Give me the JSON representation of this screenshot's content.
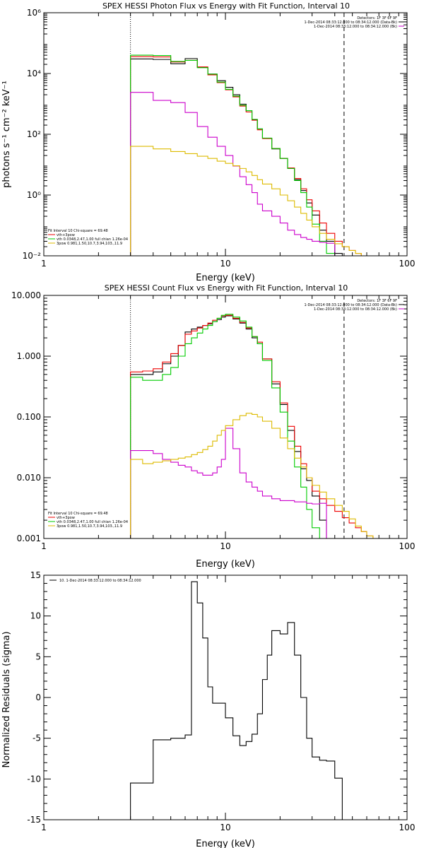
{
  "chart_data": [
    {
      "type": "line",
      "title": "SPEX HESSI Photon Flux vs Energy with Fit Function, Interval 10",
      "xlabel": "Energy (keV)",
      "ylabel": "photons s⁻¹ cm⁻² keV⁻¹",
      "xscale": "log",
      "yscale": "log",
      "xlim": [
        1,
        100
      ],
      "ylim": [
        0.01,
        1000000
      ],
      "x_ticks": [
        {
          "value": 1,
          "label": "1"
        },
        {
          "value": 10,
          "label": "10"
        },
        {
          "value": 100,
          "label": "100"
        }
      ],
      "y_ticks": [
        {
          "value": 0.01,
          "label": "10⁻²"
        },
        {
          "value": 1,
          "label": "10⁰"
        },
        {
          "value": 100,
          "label": "10²"
        },
        {
          "value": 10000,
          "label": "10⁴"
        },
        {
          "value": 1000000,
          "label": "10⁶"
        }
      ],
      "vlines": [
        {
          "x": 3.0,
          "style": "dotted"
        },
        {
          "x": 45.0,
          "style": "dashed"
        }
      ],
      "info_legend": {
        "placement": "top-right",
        "lines": [
          {
            "text": "Detectors: 1F 3F 6F 9F",
            "color": "#000000"
          },
          {
            "text": "1-Dec-2014 08:33:12.000 to 08:34:12.000 (Data-Bk)",
            "color": "#000000"
          },
          {
            "text": "1-Dec-2014 08:33:12.000 to 08:34:12.000 (Bk)",
            "color": "#cc00cc"
          }
        ]
      },
      "fit_legend": {
        "placement": "bottom-left",
        "lines": [
          {
            "text": "Fit Interval 10   Chi-square = 69.48",
            "color": "#000000"
          },
          {
            "text": "vth+3pow",
            "color": "#ee0000"
          },
          {
            "text": "vth 0.0348,2.47,1.00  full chian 1.26e-04",
            "color": "#00cc00"
          },
          {
            "text": "3pow 0.981,1.50,10.7,3.94,103.,11.9",
            "color": "#ddbb00"
          }
        ]
      },
      "edges": [
        3.0,
        4.0,
        5.0,
        6.0,
        7.0,
        8.0,
        9.0,
        10.0,
        11.0,
        12.0,
        13.0,
        14.0,
        15.0,
        16.0,
        18.0,
        20.0,
        22.0,
        24.0,
        26.0,
        28.0,
        30.0,
        33.0,
        36.0,
        40.0,
        44.0,
        48.0,
        52.0,
        56.0,
        60.0
      ],
      "series": [
        {
          "color": "#000000",
          "values": [
            30000,
            29000,
            21000,
            31000,
            16000,
            9600,
            5800,
            3500,
            2000,
            980,
            600,
            300,
            150,
            74,
            33,
            16,
            7.5,
            3.2,
            1.4,
            0.55,
            0.22,
            0.07,
            0.03,
            0.012,
            null,
            null,
            null,
            null
          ]
        },
        {
          "color": "#ee0000",
          "values": [
            36000,
            35000,
            24000,
            27000,
            16500,
            9000,
            5000,
            2900,
            1700,
            850,
            540,
            290,
            140,
            72,
            34,
            16,
            7.8,
            3.5,
            1.6,
            0.7,
            0.3,
            0.12,
            0.055,
            0.03,
            0.02,
            0.015,
            0.012,
            0.01
          ]
        },
        {
          "color": "#00cc00",
          "values": [
            40000,
            39000,
            25000,
            27000,
            15500,
            9500,
            5200,
            3000,
            1800,
            900,
            600,
            310,
            150,
            75,
            34,
            16,
            7.5,
            3.0,
            1.2,
            0.4,
            0.11,
            0.03,
            0.012,
            null,
            null,
            null,
            null,
            null
          ]
        },
        {
          "color": "#cc00cc",
          "values": [
            2400,
            1300,
            1100,
            520,
            180,
            80,
            40,
            20,
            9.0,
            4.0,
            2.2,
            1.2,
            0.5,
            0.3,
            0.2,
            0.12,
            0.07,
            0.05,
            0.04,
            0.035,
            0.03,
            0.028,
            0.026,
            null,
            null,
            null,
            null,
            null
          ]
        },
        {
          "color": "#ddbb00",
          "values": [
            40,
            33,
            27,
            23,
            19,
            16,
            13,
            11,
            9.2,
            7.5,
            5.8,
            4.4,
            3.2,
            2.3,
            1.6,
            1.0,
            0.65,
            0.4,
            0.25,
            0.15,
            0.09,
            0.055,
            0.035,
            0.025,
            0.02,
            0.015,
            0.012,
            0.01
          ]
        }
      ]
    },
    {
      "type": "line",
      "title": "SPEX HESSI Count Flux vs Energy with Fit Function, Interval 10",
      "xlabel": "Energy (keV)",
      "ylabel": "",
      "xscale": "log",
      "yscale": "log",
      "xlim": [
        1,
        100
      ],
      "ylim": [
        0.001,
        10
      ],
      "x_ticks": [
        {
          "value": 1,
          "label": "1"
        },
        {
          "value": 10,
          "label": "10"
        },
        {
          "value": 100,
          "label": "100"
        }
      ],
      "y_ticks": [
        {
          "value": 0.001,
          "label": "0.001"
        },
        {
          "value": 0.01,
          "label": "0.010"
        },
        {
          "value": 0.1,
          "label": "0.100"
        },
        {
          "value": 1,
          "label": "1.000"
        },
        {
          "value": 10,
          "label": "10.000"
        }
      ],
      "vlines": [
        {
          "x": 3.0,
          "style": "dotted"
        },
        {
          "x": 45.0,
          "style": "dashed"
        }
      ],
      "info_legend": {
        "placement": "top-right",
        "lines": [
          {
            "text": "Detectors: 1F 3F 6F 9F",
            "color": "#000000"
          },
          {
            "text": "1-Dec-2014 08:33:12.000 to 08:34:12.000 (Data-Bk)",
            "color": "#000000"
          },
          {
            "text": "1-Dec-2014 08:33:12.000 to 08:34:12.000 (Bk)",
            "color": "#cc00cc"
          }
        ]
      },
      "fit_legend": {
        "placement": "bottom-left",
        "lines": [
          {
            "text": "Fit Interval 10   Chi-square = 69.48",
            "color": "#000000"
          },
          {
            "text": "vth+3pow",
            "color": "#ee0000"
          },
          {
            "text": "vth 0.0348,2.47,1.00  full chian 1.26e-04",
            "color": "#00cc00"
          },
          {
            "text": "3pow 0.981,1.50,10.7,3.94,103.,11.9",
            "color": "#ddbb00"
          }
        ]
      },
      "edges": [
        3.0,
        3.5,
        4.0,
        4.5,
        5.0,
        5.5,
        6.0,
        6.5,
        7.0,
        7.5,
        8.0,
        8.5,
        9.0,
        9.5,
        10.0,
        11.0,
        12.0,
        13.0,
        14.0,
        15.0,
        16.0,
        18.0,
        20.0,
        22.0,
        24.0,
        26.0,
        28.0,
        30.0,
        33.0,
        36.0,
        40.0,
        44.0,
        48.0,
        52.0,
        56.0,
        60.0,
        65.0,
        70.0,
        75.0
      ],
      "series": [
        {
          "color": "#000000",
          "values": [
            0.5,
            0.5,
            0.55,
            0.75,
            1.0,
            1.5,
            2.5,
            2.8,
            3.0,
            3.2,
            3.4,
            3.7,
            4.0,
            4.4,
            4.6,
            4.1,
            3.5,
            2.8,
            2.0,
            1.6,
            0.9,
            0.35,
            0.16,
            0.06,
            0.027,
            0.014,
            0.009,
            0.005,
            0.002,
            null,
            null,
            null,
            null,
            null,
            null,
            null,
            null,
            null
          ]
        },
        {
          "color": "#ee0000",
          "values": [
            0.55,
            0.57,
            0.62,
            0.8,
            1.1,
            1.5,
            2.3,
            2.6,
            2.9,
            3.2,
            3.5,
            3.9,
            4.2,
            4.6,
            4.7,
            4.2,
            3.6,
            2.9,
            2.1,
            1.7,
            0.9,
            0.38,
            0.17,
            0.07,
            0.033,
            0.017,
            0.01,
            0.006,
            0.0045,
            0.0035,
            0.0028,
            0.0022,
            0.0018,
            0.0015,
            0.0013,
            0.0011,
            0.001,
            null
          ]
        },
        {
          "color": "#00cc00",
          "values": [
            0.45,
            0.4,
            0.4,
            0.5,
            0.65,
            1.0,
            1.6,
            2.0,
            2.4,
            2.8,
            3.2,
            3.7,
            4.2,
            4.7,
            4.9,
            4.4,
            3.8,
            3.0,
            2.1,
            1.6,
            0.85,
            0.3,
            0.12,
            0.04,
            0.015,
            0.007,
            0.003,
            0.0015,
            0.0009,
            null,
            null,
            null,
            null,
            null,
            null,
            null,
            null,
            null
          ]
        },
        {
          "color": "#cc00cc",
          "values": [
            0.028,
            0.028,
            0.025,
            0.02,
            0.018,
            0.016,
            0.015,
            0.013,
            0.012,
            0.011,
            0.011,
            0.012,
            0.015,
            0.02,
            0.065,
            0.03,
            0.012,
            0.0085,
            0.007,
            0.006,
            0.005,
            0.0045,
            0.0042,
            0.0042,
            0.004,
            0.004,
            0.0038,
            0.0037,
            0.0038,
            null,
            null,
            null,
            null,
            null,
            null,
            null,
            null,
            null
          ]
        },
        {
          "color": "#ddbb00",
          "values": [
            0.02,
            0.017,
            0.018,
            0.019,
            0.02,
            0.021,
            0.022,
            0.024,
            0.026,
            0.029,
            0.033,
            0.04,
            0.05,
            0.06,
            0.072,
            0.09,
            0.105,
            0.115,
            0.11,
            0.1,
            0.085,
            0.065,
            0.045,
            0.03,
            0.021,
            0.015,
            0.01,
            0.0075,
            0.0058,
            0.0045,
            0.0035,
            0.0028,
            0.0021,
            0.0016,
            0.0013,
            0.0011,
            0.001,
            0.001
          ]
        }
      ]
    },
    {
      "type": "line",
      "title": "",
      "xlabel": "Energy (keV)",
      "ylabel": "Normalized Residuals (sigma)",
      "xscale": "log",
      "yscale": "linear",
      "xlim": [
        1,
        100
      ],
      "ylim": [
        -15,
        15
      ],
      "x_ticks": [
        {
          "value": 1,
          "label": "1"
        },
        {
          "value": 10,
          "label": "10"
        },
        {
          "value": 100,
          "label": "100"
        }
      ],
      "y_ticks": [
        {
          "value": -15,
          "label": "-15"
        },
        {
          "value": -10,
          "label": "-10"
        },
        {
          "value": -5,
          "label": "-5"
        },
        {
          "value": 0,
          "label": "0"
        },
        {
          "value": 5,
          "label": "5"
        },
        {
          "value": 10,
          "label": "10"
        },
        {
          "value": 15,
          "label": "15"
        }
      ],
      "vlines": [],
      "info_legend": {
        "placement": "top-left",
        "lines": [
          {
            "text": "10.  1-Dec-2014 08:33:12.000 to 08:34:12.000",
            "color": "#000000",
            "swatch": true
          }
        ]
      },
      "fit_legend": null,
      "edges": [
        3.0,
        4.0,
        5.0,
        6.0,
        6.5,
        7.0,
        7.5,
        8.0,
        8.5,
        9.0,
        10.0,
        11.0,
        12.0,
        13.0,
        14.0,
        15.0,
        16.0,
        17.0,
        18.0,
        20.0,
        22.0,
        24.0,
        26.0,
        28.0,
        30.0,
        33.0,
        36.0,
        40.0,
        44.0
      ],
      "series": [
        {
          "color": "#000000",
          "values": [
            -10.5,
            -5.2,
            -5.0,
            -4.6,
            14.2,
            11.6,
            7.3,
            1.3,
            -0.7,
            -0.7,
            -2.5,
            -4.7,
            -5.9,
            -5.4,
            -4.5,
            -2.0,
            2.2,
            5.2,
            8.2,
            7.8,
            9.2,
            5.2,
            0.0,
            -5.0,
            -7.3,
            -7.7,
            -7.8,
            -9.9
          ]
        }
      ]
    }
  ]
}
